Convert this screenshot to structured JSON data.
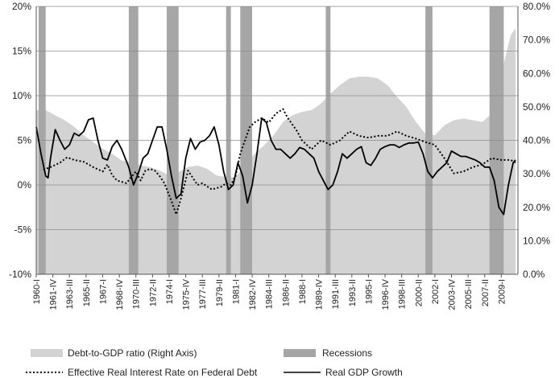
{
  "chart_data": {
    "type": "line",
    "x_axis": {
      "unit": "quarter",
      "start": "1960-I",
      "end": "2010-III",
      "tick_labels": [
        "1960-I",
        "1961-IV",
        "1963-III",
        "1965-II",
        "1967-I",
        "1968-IV",
        "1970-III",
        "1972-II",
        "1974-I",
        "1975-IV",
        "1977-III",
        "1979-II",
        "1981-I",
        "1982-IV",
        "1984-III",
        "1986-II",
        "1988-I",
        "1989-IV",
        "1991-III",
        "1993-II",
        "1995-I",
        "1996-IV",
        "1998-III",
        "2000-II",
        "2002-I",
        "2003-IV",
        "2005-III",
        "2007-II",
        "2009-I"
      ]
    },
    "y_left": {
      "min": -10,
      "max": 20,
      "step": 5,
      "tick_labels": [
        "-10%",
        "-5%",
        "0%",
        "5%",
        "10%",
        "15%",
        "20%"
      ]
    },
    "y_right": {
      "min": 0,
      "max": 80,
      "step": 10,
      "tick_labels": [
        "0.0%",
        "10.0%",
        "20.0%",
        "30.0%",
        "40.0%",
        "50.0%",
        "60.0%",
        "70.0%",
        "80.0%"
      ]
    },
    "grid": "horizontal",
    "legend_position": "bottom",
    "recessions": [
      {
        "from": 1960.25,
        "to": 1961.0
      },
      {
        "from": 1969.75,
        "to": 1970.75
      },
      {
        "from": 1973.75,
        "to": 1975.0
      },
      {
        "from": 1980.0,
        "to": 1980.5
      },
      {
        "from": 1981.5,
        "to": 1982.75
      },
      {
        "from": 1990.5,
        "to": 1991.0
      },
      {
        "from": 2001.0,
        "to": 2001.75
      },
      {
        "from": 2007.75,
        "to": 2009.25
      }
    ],
    "series": [
      {
        "name": "Debt-to-GDP ratio (Right Axis)",
        "type": "area",
        "axis": "right",
        "color": "#d3d3d3",
        "points": [
          [
            1960,
            49
          ],
          [
            1961,
            49
          ],
          [
            1962,
            47.5
          ],
          [
            1963,
            46
          ],
          [
            1964,
            44
          ],
          [
            1965,
            41.5
          ],
          [
            1966,
            39.5
          ],
          [
            1967,
            37.5
          ],
          [
            1968,
            36
          ],
          [
            1969,
            34
          ],
          [
            1970,
            33.5
          ],
          [
            1971,
            32.5
          ],
          [
            1972,
            32
          ],
          [
            1973,
            31
          ],
          [
            1974,
            29.5
          ],
          [
            1975,
            30.5
          ],
          [
            1976,
            32
          ],
          [
            1977,
            32.5
          ],
          [
            1978,
            31.5
          ],
          [
            1979,
            29.5
          ],
          [
            1980,
            29
          ],
          [
            1981,
            29
          ],
          [
            1982,
            32.5
          ],
          [
            1983,
            36
          ],
          [
            1984,
            38.5
          ],
          [
            1985,
            41.5
          ],
          [
            1986,
            45.5
          ],
          [
            1987,
            47.5
          ],
          [
            1988,
            48.5
          ],
          [
            1989,
            49
          ],
          [
            1990,
            51
          ],
          [
            1991,
            54
          ],
          [
            1992,
            56.5
          ],
          [
            1993,
            58.5
          ],
          [
            1994,
            59
          ],
          [
            1995,
            59
          ],
          [
            1996,
            58.5
          ],
          [
            1997,
            56.5
          ],
          [
            1998,
            53
          ],
          [
            1999,
            50
          ],
          [
            2000,
            45.5
          ],
          [
            2001,
            42
          ],
          [
            2002,
            41.5
          ],
          [
            2003,
            44.5
          ],
          [
            2004,
            46
          ],
          [
            2005,
            46.5
          ],
          [
            2006,
            46
          ],
          [
            2007,
            45.5
          ],
          [
            2008,
            48
          ],
          [
            2009,
            60
          ],
          [
            2010,
            71.5
          ],
          [
            2010.5,
            73.5
          ]
        ]
      },
      {
        "name": "Effective Real Interest Rate on Federal Debt",
        "type": "line",
        "style": "dotted",
        "axis": "left",
        "color": "#000000",
        "points": [
          [
            1960.75,
            1.7
          ],
          [
            1961.5,
            2
          ],
          [
            1962.5,
            2.5
          ],
          [
            1963.25,
            3.1
          ],
          [
            1964,
            2.8
          ],
          [
            1965,
            2.6
          ],
          [
            1966,
            2
          ],
          [
            1967,
            1.5
          ],
          [
            1967.5,
            2.3
          ],
          [
            1968,
            1.1
          ],
          [
            1968.5,
            0.5
          ],
          [
            1969.5,
            0.2
          ],
          [
            1970.5,
            1.5
          ],
          [
            1971,
            0.5
          ],
          [
            1971.5,
            1.6
          ],
          [
            1972,
            1.8
          ],
          [
            1972.5,
            1.6
          ],
          [
            1973,
            1
          ],
          [
            1973.5,
            0.2
          ],
          [
            1974.25,
            -1.8
          ],
          [
            1974.75,
            -3.3
          ],
          [
            1975.25,
            -1.5
          ],
          [
            1976,
            1.6
          ],
          [
            1976.5,
            0.8
          ],
          [
            1977,
            0
          ],
          [
            1977.5,
            0.2
          ],
          [
            1978.5,
            -0.5
          ],
          [
            1979.5,
            -0.2
          ],
          [
            1980,
            0.2
          ],
          [
            1980.5,
            0
          ],
          [
            1981,
            1
          ],
          [
            1981.5,
            3.5
          ],
          [
            1982,
            5
          ],
          [
            1982.5,
            6.5
          ],
          [
            1983,
            7
          ],
          [
            1983.75,
            7.5
          ],
          [
            1984.5,
            7
          ],
          [
            1985.25,
            8
          ],
          [
            1986,
            8.5
          ],
          [
            1986.5,
            7.5
          ],
          [
            1987.5,
            6
          ],
          [
            1988,
            5
          ],
          [
            1989,
            4
          ],
          [
            1990,
            5
          ],
          [
            1991,
            4.5
          ],
          [
            1992,
            5
          ],
          [
            1993,
            6
          ],
          [
            1994,
            5.5
          ],
          [
            1995,
            5.3
          ],
          [
            1996,
            5.5
          ],
          [
            1997,
            5.5
          ],
          [
            1998,
            6
          ],
          [
            1999,
            5.5
          ],
          [
            2000,
            5.2
          ],
          [
            2001,
            4.8
          ],
          [
            2002,
            4.5
          ],
          [
            2003,
            3
          ],
          [
            2004,
            1.3
          ],
          [
            2005,
            1.5
          ],
          [
            2006,
            2
          ],
          [
            2007,
            2.3
          ],
          [
            2008,
            3
          ],
          [
            2009,
            2.8
          ],
          [
            2010,
            2.8
          ],
          [
            2010.5,
            2.5
          ]
        ]
      },
      {
        "name": "Real GDP Growth",
        "type": "line",
        "style": "solid",
        "axis": "left",
        "color": "#000000",
        "points": [
          [
            1960,
            6.5
          ],
          [
            1960.5,
            3.5
          ],
          [
            1961,
            1
          ],
          [
            1961.25,
            0.8
          ],
          [
            1961.5,
            3
          ],
          [
            1962,
            6.2
          ],
          [
            1962.5,
            5
          ],
          [
            1963,
            4
          ],
          [
            1963.5,
            4.5
          ],
          [
            1964,
            5.8
          ],
          [
            1964.5,
            5.5
          ],
          [
            1965,
            6
          ],
          [
            1965.5,
            7.3
          ],
          [
            1966,
            7.5
          ],
          [
            1966.5,
            5
          ],
          [
            1967,
            3
          ],
          [
            1967.5,
            2.8
          ],
          [
            1968,
            4.3
          ],
          [
            1968.5,
            5
          ],
          [
            1969,
            4
          ],
          [
            1969.75,
            2
          ],
          [
            1970.25,
            0
          ],
          [
            1970.75,
            1.3
          ],
          [
            1971.25,
            3
          ],
          [
            1971.75,
            3.5
          ],
          [
            1972.25,
            5
          ],
          [
            1972.75,
            6.5
          ],
          [
            1973.25,
            6.5
          ],
          [
            1973.75,
            4
          ],
          [
            1974.25,
            1
          ],
          [
            1974.75,
            -1.5
          ],
          [
            1975.25,
            -1
          ],
          [
            1975.75,
            3
          ],
          [
            1976.25,
            5.2
          ],
          [
            1976.75,
            4
          ],
          [
            1977.25,
            4.8
          ],
          [
            1977.75,
            5
          ],
          [
            1978.25,
            5.5
          ],
          [
            1978.75,
            6.5
          ],
          [
            1979.25,
            4.5
          ],
          [
            1979.75,
            1.5
          ],
          [
            1980.25,
            -0.5
          ],
          [
            1980.75,
            0
          ],
          [
            1981.25,
            2.5
          ],
          [
            1981.75,
            1
          ],
          [
            1982.25,
            -2
          ],
          [
            1982.75,
            0
          ],
          [
            1983.25,
            3.5
          ],
          [
            1983.75,
            7.5
          ],
          [
            1984.25,
            7
          ],
          [
            1984.75,
            5
          ],
          [
            1985.25,
            4
          ],
          [
            1985.75,
            4
          ],
          [
            1986.25,
            3.5
          ],
          [
            1986.75,
            3
          ],
          [
            1987.25,
            3.5
          ],
          [
            1987.75,
            4.2
          ],
          [
            1988.25,
            4
          ],
          [
            1988.75,
            3.5
          ],
          [
            1989.25,
            3
          ],
          [
            1989.75,
            1.5
          ],
          [
            1990.25,
            0.5
          ],
          [
            1990.75,
            -0.5
          ],
          [
            1991.25,
            0
          ],
          [
            1991.75,
            1.5
          ],
          [
            1992.25,
            3.5
          ],
          [
            1992.75,
            3
          ],
          [
            1993.25,
            3.5
          ],
          [
            1993.75,
            4
          ],
          [
            1994.25,
            4.3
          ],
          [
            1994.75,
            2.5
          ],
          [
            1995.25,
            2.2
          ],
          [
            1995.75,
            3
          ],
          [
            1996.25,
            4
          ],
          [
            1996.75,
            4.3
          ],
          [
            1997.25,
            4.5
          ],
          [
            1997.75,
            4.5
          ],
          [
            1998.25,
            4.2
          ],
          [
            1998.75,
            4.5
          ],
          [
            1999.25,
            4.7
          ],
          [
            1999.75,
            4.7
          ],
          [
            2000.25,
            4.8
          ],
          [
            2000.75,
            3.5
          ],
          [
            2001.25,
            1.5
          ],
          [
            2001.75,
            0.8
          ],
          [
            2002.25,
            1.5
          ],
          [
            2002.75,
            2
          ],
          [
            2003.25,
            2.5
          ],
          [
            2003.75,
            3.8
          ],
          [
            2004.25,
            3.5
          ],
          [
            2004.75,
            3.2
          ],
          [
            2005.25,
            3.2
          ],
          [
            2005.75,
            3
          ],
          [
            2006.25,
            2.8
          ],
          [
            2006.75,
            2.5
          ],
          [
            2007.25,
            2
          ],
          [
            2007.75,
            2
          ],
          [
            2008.25,
            0.5
          ],
          [
            2008.75,
            -2.5
          ],
          [
            2009.25,
            -3.3
          ],
          [
            2009.75,
            0
          ],
          [
            2010.25,
            2.5
          ],
          [
            2010.5,
            2.8
          ]
        ]
      }
    ],
    "legend": [
      {
        "label": "Debt-to-GDP ratio (Right Axis)",
        "kind": "area",
        "color": "#d3d3d3"
      },
      {
        "label": "Recessions",
        "kind": "area",
        "color": "#a6a6a6"
      },
      {
        "label": "Effective Real Interest Rate on Federal Debt",
        "kind": "dotted"
      },
      {
        "label": "Real GDP Growth",
        "kind": "solid"
      }
    ],
    "recession_color": "#a6a6a6"
  }
}
